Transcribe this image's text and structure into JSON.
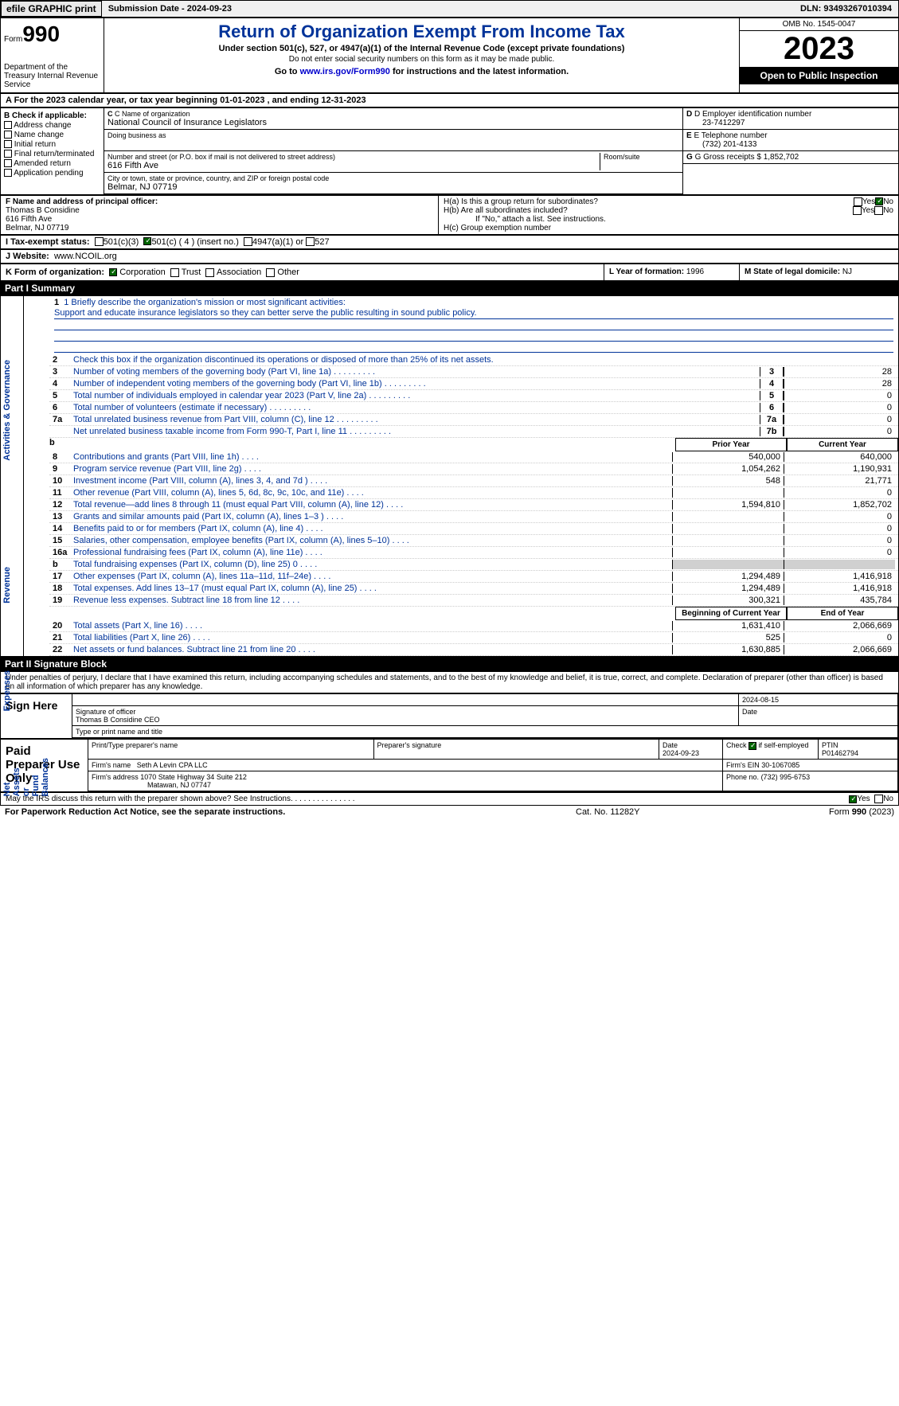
{
  "topbar": {
    "efile_btn": "efile GRAPHIC print",
    "sub_label": "Submission Date - 2024-09-23",
    "dln": "DLN: 93493267010394"
  },
  "header": {
    "form_label": "Form",
    "form_num": "990",
    "dept": "Department of the Treasury Internal Revenue Service",
    "title": "Return of Organization Exempt From Income Tax",
    "subtitle": "Under section 501(c), 527, or 4947(a)(1) of the Internal Revenue Code (except private foundations)",
    "notice": "Do not enter social security numbers on this form as it may be made public.",
    "goto_prefix": "Go to ",
    "goto_link": "www.irs.gov/Form990",
    "goto_suffix": " for instructions and the latest information.",
    "omb": "OMB No. 1545-0047",
    "year": "2023",
    "open": "Open to Public Inspection"
  },
  "period": "A For the 2023 calendar year, or tax year beginning 01-01-2023    , and ending 12-31-2023",
  "boxB": {
    "label": "B Check if applicable:",
    "items": [
      "Address change",
      "Name change",
      "Initial return",
      "Final return/terminated",
      "Amended return",
      "Application pending"
    ]
  },
  "boxC": {
    "name_label": "C Name of organization",
    "name": "National Council of Insurance Legislators",
    "dba_label": "Doing business as",
    "street_label": "Number and street (or P.O. box if mail is not delivered to street address)",
    "street": "616 Fifth Ave",
    "room_label": "Room/suite",
    "city_label": "City or town, state or province, country, and ZIP or foreign postal code",
    "city": "Belmar, NJ  07719"
  },
  "boxD": {
    "label": "D Employer identification number",
    "value": "23-7412297"
  },
  "boxE": {
    "label": "E Telephone number",
    "value": "(732) 201-4133"
  },
  "boxG": {
    "label": "G Gross receipts $",
    "value": "1,852,702"
  },
  "boxF": {
    "label": "F  Name and address of principal officer:",
    "name": "Thomas B Considine",
    "street": "616 Fifth Ave",
    "city": "Belmar, NJ  07719"
  },
  "boxH": {
    "a": "H(a)  Is this a group return for subordinates?",
    "b": "H(b)  Are all subordinates included?",
    "b_note": "If \"No,\" attach a list. See instructions.",
    "c": "H(c)  Group exemption number",
    "yes": "Yes",
    "no": "No"
  },
  "taxI": {
    "label": "I  Tax-exempt status:",
    "opt1": "501(c)(3)",
    "opt2": "501(c) ( 4 ) (insert no.)",
    "opt3": "4947(a)(1) or",
    "opt4": "527"
  },
  "boxJ": {
    "label": "J  Website:",
    "value": "www.NCOIL.org"
  },
  "boxK": {
    "label": "K Form of organization:",
    "opts": [
      "Corporation",
      "Trust",
      "Association",
      "Other"
    ]
  },
  "boxL": {
    "label": "L Year of formation:",
    "value": "1996"
  },
  "boxM": {
    "label": "M State of legal domicile:",
    "value": "NJ"
  },
  "partI": {
    "hdr": "Part I      Summary",
    "line1_label": "1  Briefly describe the organization's mission or most significant activities:",
    "line1_text": "Support and educate insurance legislators so they can better serve the public resulting in sound public policy.",
    "line2": "Check this box      if the organization discontinued its operations or disposed of more than 25% of its net assets.",
    "governance": [
      {
        "n": "3",
        "t": "Number of voting members of the governing body (Part VI, line 1a)",
        "c": "3",
        "v": "28"
      },
      {
        "n": "4",
        "t": "Number of independent voting members of the governing body (Part VI, line 1b)",
        "c": "4",
        "v": "28"
      },
      {
        "n": "5",
        "t": "Total number of individuals employed in calendar year 2023 (Part V, line 2a)",
        "c": "5",
        "v": "0"
      },
      {
        "n": "6",
        "t": "Total number of volunteers (estimate if necessary)",
        "c": "6",
        "v": "0"
      },
      {
        "n": "7a",
        "t": "Total unrelated business revenue from Part VIII, column (C), line 12",
        "c": "7a",
        "v": "0"
      },
      {
        "n": "",
        "t": "Net unrelated business taxable income from Form 990-T, Part I, line 11",
        "c": "7b",
        "v": "0"
      }
    ],
    "col_prior": "Prior Year",
    "col_current": "Current Year",
    "revenue": [
      {
        "n": "8",
        "t": "Contributions and grants (Part VIII, line 1h)",
        "p": "540,000",
        "c": "640,000"
      },
      {
        "n": "9",
        "t": "Program service revenue (Part VIII, line 2g)",
        "p": "1,054,262",
        "c": "1,190,931"
      },
      {
        "n": "10",
        "t": "Investment income (Part VIII, column (A), lines 3, 4, and 7d )",
        "p": "548",
        "c": "21,771"
      },
      {
        "n": "11",
        "t": "Other revenue (Part VIII, column (A), lines 5, 6d, 8c, 9c, 10c, and 11e)",
        "p": "",
        "c": "0"
      },
      {
        "n": "12",
        "t": "Total revenue—add lines 8 through 11 (must equal Part VIII, column (A), line 12)",
        "p": "1,594,810",
        "c": "1,852,702"
      }
    ],
    "expenses": [
      {
        "n": "13",
        "t": "Grants and similar amounts paid (Part IX, column (A), lines 1–3 )",
        "p": "",
        "c": "0"
      },
      {
        "n": "14",
        "t": "Benefits paid to or for members (Part IX, column (A), line 4)",
        "p": "",
        "c": "0"
      },
      {
        "n": "15",
        "t": "Salaries, other compensation, employee benefits (Part IX, column (A), lines 5–10)",
        "p": "",
        "c": "0"
      },
      {
        "n": "16a",
        "t": "Professional fundraising fees (Part IX, column (A), line 11e)",
        "p": "",
        "c": "0"
      },
      {
        "n": "b",
        "t": "Total fundraising expenses (Part IX, column (D), line 25) 0",
        "p": "grey",
        "c": "grey"
      },
      {
        "n": "17",
        "t": "Other expenses (Part IX, column (A), lines 11a–11d, 11f–24e)",
        "p": "1,294,489",
        "c": "1,416,918"
      },
      {
        "n": "18",
        "t": "Total expenses. Add lines 13–17 (must equal Part IX, column (A), line 25)",
        "p": "1,294,489",
        "c": "1,416,918"
      },
      {
        "n": "19",
        "t": "Revenue less expenses. Subtract line 18 from line 12",
        "p": "300,321",
        "c": "435,784"
      }
    ],
    "col_begin": "Beginning of Current Year",
    "col_end": "End of Year",
    "netassets": [
      {
        "n": "20",
        "t": "Total assets (Part X, line 16)",
        "p": "1,631,410",
        "c": "2,066,669"
      },
      {
        "n": "21",
        "t": "Total liabilities (Part X, line 26)",
        "p": "525",
        "c": "0"
      },
      {
        "n": "22",
        "t": "Net assets or fund balances. Subtract line 21 from line 20",
        "p": "1,630,885",
        "c": "2,066,669"
      }
    ]
  },
  "partII": {
    "hdr": "Part II      Signature Block",
    "declare": "Under penalties of perjury, I declare that I have examined this return, including accompanying schedules and statements, and to the best of my knowledge and belief, it is true, correct, and complete. Declaration of preparer (other than officer) is based on all information of which preparer has any knowledge."
  },
  "sign": {
    "left": "Sign Here",
    "sig_label": "Signature of officer",
    "date_label": "Date",
    "date": "2024-08-15",
    "name": "Thomas B Considine  CEO",
    "name_label": "Type or print name and title"
  },
  "prep": {
    "left": "Paid Preparer Use Only",
    "col1": "Print/Type preparer's name",
    "col2": "Preparer's signature",
    "col3": "Date",
    "date": "2024-09-23",
    "col4": "Check       if self-employed",
    "col5": "PTIN",
    "ptin": "P01462794",
    "firm_label": "Firm's name",
    "firm": "Seth A Levin CPA LLC",
    "ein_label": "Firm's EIN",
    "ein": "30-1067085",
    "addr_label": "Firm's address",
    "addr": "1070 State Highway 34 Suite 212",
    "addr2": "Matawan, NJ  07747",
    "phone_label": "Phone no.",
    "phone": "(732) 995-6753"
  },
  "discuss": {
    "text": "May the IRS discuss this return with the preparer shown above? See Instructions.",
    "yes": "Yes",
    "no": "No"
  },
  "footer": {
    "left": "For Paperwork Reduction Act Notice, see the separate instructions.",
    "mid": "Cat. No. 11282Y",
    "right": "Form 990 (2023)"
  }
}
